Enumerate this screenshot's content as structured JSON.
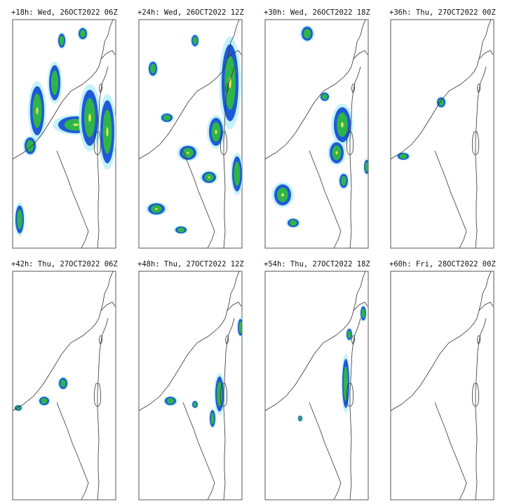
{
  "panels": [
    {
      "title": "+18h: Wed, 26OCT2022 06Z"
    },
    {
      "title": "+24h: Wed, 26OCT2022 12Z"
    },
    {
      "title": "+30h: Wed, 26OCT2022 18Z"
    },
    {
      "title": "+36h: Thu, 27OCT2022 00Z"
    },
    {
      "title": "+42h: Thu, 27OCT2022 06Z"
    },
    {
      "title": "+48h: Thu, 27OCT2022 12Z"
    },
    {
      "title": "+54h: Thu, 27OCT2022 18Z"
    },
    {
      "title": "+60h: Fri, 28OCT2022 00Z"
    }
  ]
}
